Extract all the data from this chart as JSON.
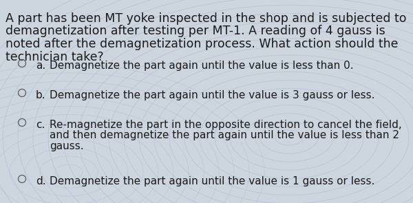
{
  "background_color": "#cdd5df",
  "question_lines": [
    "A part has been MT yoke inspected in the shop and is subjected to",
    "demagnetization after testing per MT-1. A reading of 4 gauss is",
    "noted after the demagnetization process. What action should the",
    "technician take?"
  ],
  "question_fontsize": 12.5,
  "options": [
    {
      "label": "a.",
      "lines": [
        "Demagnetize the part again until the value is less than 0."
      ]
    },
    {
      "label": "b.",
      "lines": [
        "Demagnetize the part again until the value is 3 gauss or less."
      ]
    },
    {
      "label": "c.",
      "lines": [
        "Re-magnetize the part in the opposite direction to cancel the field,",
        "and then demagnetize the part again until the value is less than 2",
        "gauss."
      ]
    },
    {
      "label": "d.",
      "lines": [
        "Demagnetize the part again until the value is 1 gauss or less."
      ]
    }
  ],
  "option_fontsize": 11.0,
  "text_color": "#1a1a1a",
  "circle_color": "#666666",
  "swirl_color": "#a8b8cc"
}
